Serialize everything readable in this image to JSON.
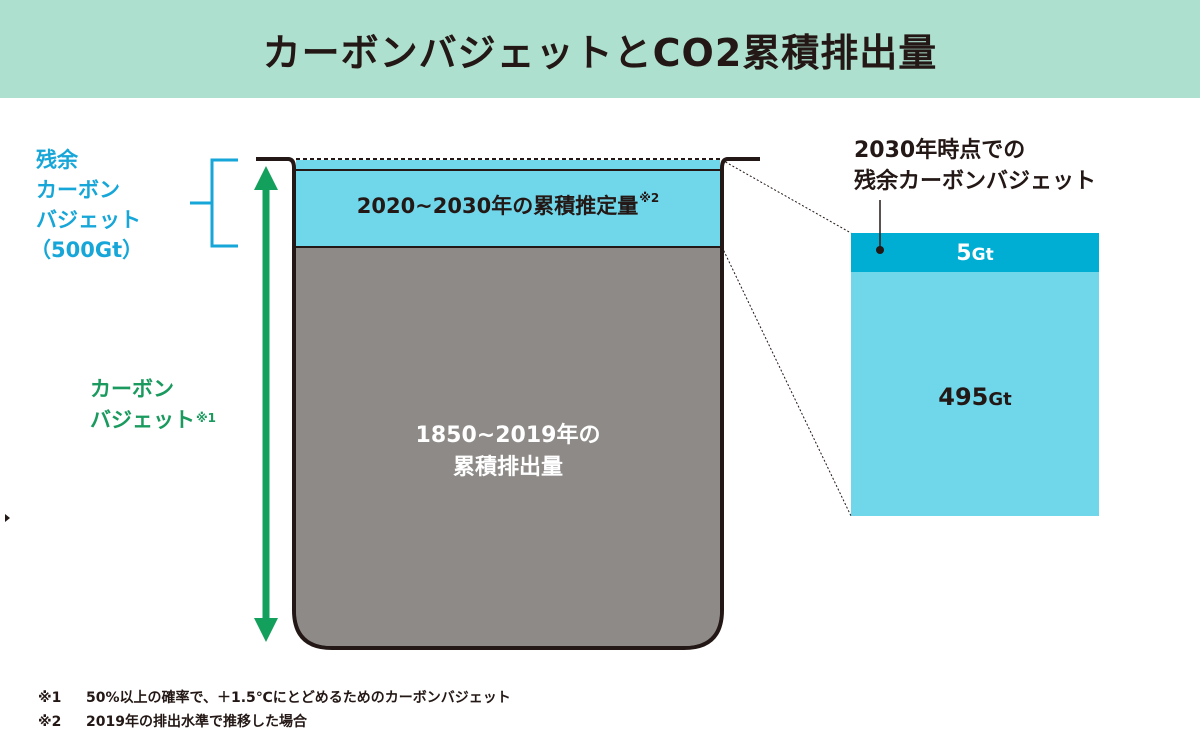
{
  "title": "カーボンバジェットとCO2累積排出量",
  "remaining_label": {
    "line1": "残余",
    "line2": "カーボン",
    "line3": "バジェット",
    "line4": "（500Gt）"
  },
  "carbon_budget_label": {
    "line1": "カーボン",
    "line2": "バジェット",
    "note_mark": "※1"
  },
  "bucket": {
    "estimate_label": "2020~2030年の累積推定量",
    "estimate_note_mark": "※2",
    "historical_line1": "1850~2019年の",
    "historical_line2": "累積排出量"
  },
  "breakdown": {
    "title_line1": "2030年時点での",
    "title_line2": "残余カーボンバジェット",
    "top_value": "5",
    "top_unit": "Gt",
    "main_value": "495",
    "main_unit": "Gt"
  },
  "breakdown_values_gt": {
    "top": 5,
    "main": 495
  },
  "footnotes": [
    {
      "mark": "※1",
      "text": "50%以上の確率で、＋1.5℃にとどめるためのカーボンバジェット"
    },
    {
      "mark": "※2",
      "text": "2019年の排出水準で推移した場合"
    }
  ],
  "colors": {
    "header_bg": "#aee0cf",
    "light_blue": "#70d7ea",
    "dark_blue": "#00add3",
    "gray": "#8e8a87",
    "green": "#13a05c",
    "bracket_blue": "#16a6d8",
    "dark": "#231815"
  }
}
